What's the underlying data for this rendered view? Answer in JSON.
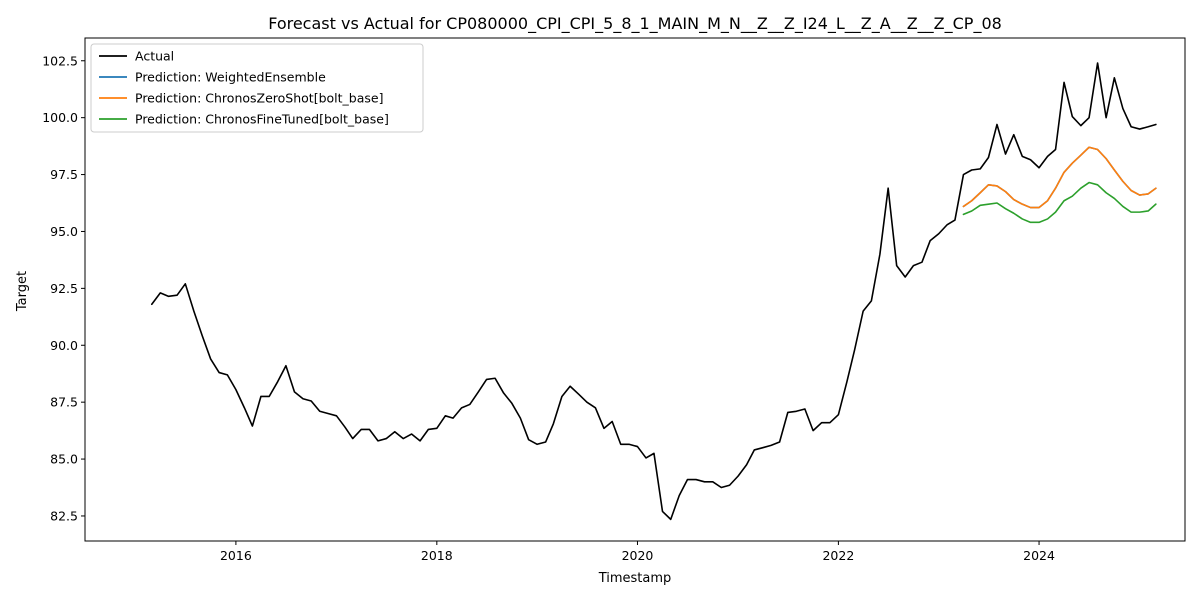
{
  "chart_data": {
    "type": "line",
    "title": "Forecast vs Actual for CP080000_CPI_CPI_5_8_1_MAIN_M_N__Z__Z_I24_L__Z_A__Z__Z_CP_08",
    "xlabel": "Timestamp",
    "ylabel": "Target",
    "x_ticks": [
      "2016",
      "2018",
      "2020",
      "2022",
      "2024"
    ],
    "y_ticks": [
      "82.5",
      "85.0",
      "87.5",
      "90.0",
      "92.5",
      "95.0",
      "97.5",
      "100.0",
      "102.5"
    ],
    "xlim": [
      "2014-07-01",
      "2025-06-15"
    ],
    "ylim": [
      81.4,
      103.5
    ],
    "legend_position": "top-left",
    "grid": false,
    "series": [
      {
        "name": "Actual",
        "color": "#000000",
        "x": [
          "2015-03-01",
          "2015-04-01",
          "2015-05-01",
          "2015-06-01",
          "2015-07-01",
          "2015-08-01",
          "2015-09-01",
          "2015-10-01",
          "2015-11-01",
          "2015-12-01",
          "2016-01-01",
          "2016-02-01",
          "2016-03-01",
          "2016-04-01",
          "2016-05-01",
          "2016-06-01",
          "2016-07-01",
          "2016-08-01",
          "2016-09-01",
          "2016-10-01",
          "2016-11-01",
          "2016-12-01",
          "2017-01-01",
          "2017-02-01",
          "2017-03-01",
          "2017-04-01",
          "2017-05-01",
          "2017-06-01",
          "2017-07-01",
          "2017-08-01",
          "2017-09-01",
          "2017-10-01",
          "2017-11-01",
          "2017-12-01",
          "2018-01-01",
          "2018-02-01",
          "2018-03-01",
          "2018-04-01",
          "2018-05-01",
          "2018-06-01",
          "2018-07-01",
          "2018-08-01",
          "2018-09-01",
          "2018-10-01",
          "2018-11-01",
          "2018-12-01",
          "2019-01-01",
          "2019-02-01",
          "2019-03-01",
          "2019-04-01",
          "2019-05-01",
          "2019-06-01",
          "2019-07-01",
          "2019-08-01",
          "2019-09-01",
          "2019-10-01",
          "2019-11-01",
          "2019-12-01",
          "2020-01-01",
          "2020-02-01",
          "2020-03-01",
          "2020-04-01",
          "2020-05-01",
          "2020-06-01",
          "2020-07-01",
          "2020-08-01",
          "2020-09-01",
          "2020-10-01",
          "2020-11-01",
          "2020-12-01",
          "2021-01-01",
          "2021-02-01",
          "2021-03-01",
          "2021-04-01",
          "2021-05-01",
          "2021-06-01",
          "2021-07-01",
          "2021-08-01",
          "2021-09-01",
          "2021-10-01",
          "2021-11-01",
          "2021-12-01",
          "2022-01-01",
          "2022-02-01",
          "2022-03-01",
          "2022-04-01",
          "2022-05-01",
          "2022-06-01",
          "2022-07-01",
          "2022-08-01",
          "2022-09-01",
          "2022-10-01",
          "2022-11-01",
          "2022-12-01",
          "2023-01-01",
          "2023-02-01",
          "2023-03-01",
          "2023-04-01",
          "2023-05-01",
          "2023-06-01",
          "2023-07-01",
          "2023-08-01",
          "2023-09-01",
          "2023-10-01",
          "2023-11-01",
          "2023-12-01",
          "2024-01-01",
          "2024-02-01",
          "2024-03-01",
          "2024-04-01",
          "2024-05-01",
          "2024-06-01",
          "2024-07-01",
          "2024-08-01",
          "2024-09-01",
          "2024-10-01",
          "2024-11-01",
          "2024-12-01",
          "2025-01-01",
          "2025-02-01",
          "2025-03-01"
        ],
        "values": [
          91.8,
          92.3,
          92.15,
          92.2,
          92.7,
          91.5,
          90.4,
          89.4,
          88.8,
          88.7,
          88.05,
          87.25,
          86.45,
          87.75,
          87.75,
          88.4,
          89.1,
          87.95,
          87.65,
          87.55,
          87.1,
          87.0,
          86.9,
          86.4,
          85.9,
          86.3,
          86.3,
          85.8,
          85.9,
          86.2,
          85.9,
          86.1,
          85.8,
          86.3,
          86.35,
          86.9,
          86.8,
          87.25,
          87.4,
          87.95,
          88.5,
          88.55,
          87.9,
          87.45,
          86.8,
          85.85,
          85.65,
          85.75,
          86.55,
          87.75,
          88.2,
          87.85,
          87.5,
          87.25,
          86.35,
          86.65,
          85.65,
          85.65,
          85.55,
          85.05,
          85.25,
          82.7,
          82.35,
          83.4,
          84.1,
          84.1,
          84.0,
          84.0,
          83.75,
          83.85,
          84.25,
          84.75,
          85.4,
          85.5,
          85.6,
          85.75,
          87.05,
          87.1,
          87.2,
          86.25,
          86.6,
          86.6,
          86.95,
          88.4,
          89.8,
          91.5,
          91.95,
          94.0,
          96.9,
          93.5,
          93.0,
          93.5,
          93.65,
          94.6,
          94.9,
          95.3,
          95.5,
          97.5,
          97.7,
          97.75,
          98.25,
          99.7,
          98.4,
          99.25,
          98.3,
          98.15,
          97.8,
          98.3,
          98.6,
          101.55,
          100.05,
          99.65,
          100.0,
          102.4,
          100.0,
          101.75,
          100.4,
          99.6,
          99.5,
          99.6,
          99.7
        ]
      },
      {
        "name": "Prediction: WeightedEnsemble",
        "color": "#1f77b4",
        "x": [
          "2023-04-01",
          "2023-05-01",
          "2023-06-01",
          "2023-07-01",
          "2023-08-01",
          "2023-09-01",
          "2023-10-01",
          "2023-11-01",
          "2023-12-01",
          "2024-01-01",
          "2024-02-01",
          "2024-03-01",
          "2024-04-01",
          "2024-05-01",
          "2024-06-01",
          "2024-07-01",
          "2024-08-01",
          "2024-09-01",
          "2024-10-01",
          "2024-11-01",
          "2024-12-01",
          "2025-01-01",
          "2025-02-01",
          "2025-03-01"
        ],
        "values": [
          96.1,
          96.35,
          96.7,
          97.05,
          97.0,
          96.75,
          96.4,
          96.2,
          96.05,
          96.05,
          96.35,
          96.9,
          97.6,
          98.0,
          98.35,
          98.7,
          98.6,
          98.2,
          97.7,
          97.2,
          96.8,
          96.6,
          96.65,
          96.9
        ]
      },
      {
        "name": "Prediction: ChronosZeroShot[bolt_base]",
        "color": "#ff7f0e",
        "x": [
          "2023-04-01",
          "2023-05-01",
          "2023-06-01",
          "2023-07-01",
          "2023-08-01",
          "2023-09-01",
          "2023-10-01",
          "2023-11-01",
          "2023-12-01",
          "2024-01-01",
          "2024-02-01",
          "2024-03-01",
          "2024-04-01",
          "2024-05-01",
          "2024-06-01",
          "2024-07-01",
          "2024-08-01",
          "2024-09-01",
          "2024-10-01",
          "2024-11-01",
          "2024-12-01",
          "2025-01-01",
          "2025-02-01",
          "2025-03-01"
        ],
        "values": [
          96.1,
          96.35,
          96.7,
          97.05,
          97.0,
          96.75,
          96.4,
          96.2,
          96.05,
          96.05,
          96.35,
          96.9,
          97.6,
          98.0,
          98.35,
          98.7,
          98.6,
          98.2,
          97.7,
          97.2,
          96.8,
          96.6,
          96.65,
          96.9
        ]
      },
      {
        "name": "Prediction: ChronosFineTuned[bolt_base]",
        "color": "#2ca02c",
        "x": [
          "2023-04-01",
          "2023-05-01",
          "2023-06-01",
          "2023-07-01",
          "2023-08-01",
          "2023-09-01",
          "2023-10-01",
          "2023-11-01",
          "2023-12-01",
          "2024-01-01",
          "2024-02-01",
          "2024-03-01",
          "2024-04-01",
          "2024-05-01",
          "2024-06-01",
          "2024-07-01",
          "2024-08-01",
          "2024-09-01",
          "2024-10-01",
          "2024-11-01",
          "2024-12-01",
          "2025-01-01",
          "2025-02-01",
          "2025-03-01"
        ],
        "values": [
          95.75,
          95.9,
          96.15,
          96.2,
          96.25,
          96.0,
          95.8,
          95.55,
          95.4,
          95.4,
          95.55,
          95.85,
          96.35,
          96.55,
          96.9,
          97.15,
          97.05,
          96.7,
          96.45,
          96.1,
          95.85,
          95.85,
          95.9,
          96.2
        ]
      }
    ]
  }
}
